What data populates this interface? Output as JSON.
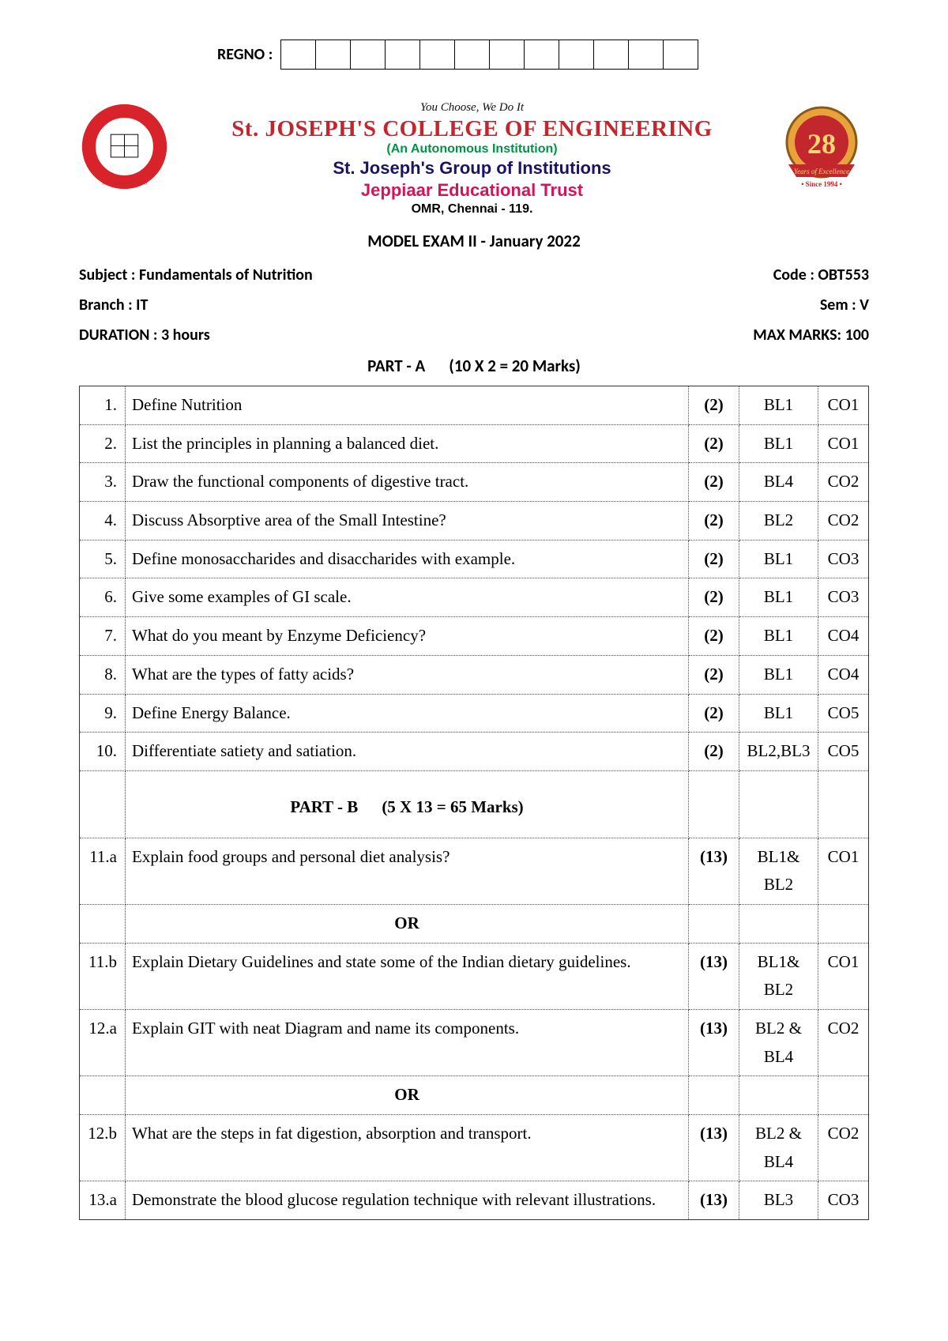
{
  "regno_label": "REGNO :",
  "regno_box_count": 12,
  "header": {
    "tagline": "You Choose, We Do It",
    "college": "St. JOSEPH'S COLLEGE OF ENGINEERING",
    "autonomous": "(An Autonomous Institution)",
    "group": "St. Joseph's Group of Institutions",
    "trust": "Jeppiaar Educational Trust",
    "address": "OMR, Chennai - 119.",
    "badge_number": "28",
    "badge_since": "• Since 1994 •",
    "badge_ribbon": "Years of Excellence"
  },
  "exam_title": "MODEL EXAM II - January 2022",
  "meta": {
    "subject_label": "Subject : Fundamentals of Nutrition",
    "code_label": "Code : OBT553",
    "branch_label": "Branch : IT",
    "sem_label": "Sem : V",
    "duration_label": "DURATION : 3 hours",
    "max_marks_label": "MAX MARKS: 100"
  },
  "part_a_header_left": "PART - A",
  "part_a_header_right": "(10 X 2 = 20 Marks)",
  "part_b_header_left": "PART - B",
  "part_b_header_right": "(5 X 13 = 65 Marks)",
  "or_label": "OR",
  "part_a": [
    {
      "num": "1.",
      "q": "Define Nutrition",
      "marks": "(2)",
      "bl": "BL1",
      "co": "CO1"
    },
    {
      "num": "2.",
      "q": "List the principles in planning a balanced diet.",
      "marks": "(2)",
      "bl": "BL1",
      "co": "CO1"
    },
    {
      "num": "3.",
      "q": "Draw the functional components of digestive tract.",
      "marks": "(2)",
      "bl": "BL4",
      "co": "CO2"
    },
    {
      "num": "4.",
      "q": "Discuss Absorptive area of the Small Intestine?",
      "marks": "(2)",
      "bl": "BL2",
      "co": "CO2"
    },
    {
      "num": "5.",
      "q": "Define monosaccharides and disaccharides with example.",
      "marks": "(2)",
      "bl": "BL1",
      "co": "CO3"
    },
    {
      "num": "6.",
      "q": "Give some examples of GI scale.",
      "marks": "(2)",
      "bl": "BL1",
      "co": "CO3"
    },
    {
      "num": "7.",
      "q": "What do you meant by Enzyme Deficiency?",
      "marks": "(2)",
      "bl": "BL1",
      "co": "CO4"
    },
    {
      "num": "8.",
      "q": "What are the types of fatty acids?",
      "marks": "(2)",
      "bl": "BL1",
      "co": "CO4"
    },
    {
      "num": "9.",
      "q": "Define Energy Balance.",
      "marks": "(2)",
      "bl": "BL1",
      "co": "CO5"
    },
    {
      "num": "10.",
      "q": "Differentiate satiety and satiation.",
      "marks": "(2)",
      "bl": "BL2,BL3",
      "co": "CO5"
    }
  ],
  "part_b": [
    {
      "num": "11.a",
      "q": "Explain food groups and personal diet analysis?",
      "marks": "(13)",
      "bl": "BL1& BL2",
      "co": "CO1"
    },
    {
      "type": "or"
    },
    {
      "num": "11.b",
      "q": "Explain Dietary Guidelines and state some of the Indian dietary guidelines.",
      "marks": "(13)",
      "bl": "BL1& BL2",
      "co": "CO1"
    },
    {
      "num": "12.a",
      "q": "Explain GIT with neat Diagram and name its components.",
      "marks": "(13)",
      "bl": "BL2 & BL4",
      "co": "CO2"
    },
    {
      "type": "or"
    },
    {
      "num": "12.b",
      "q": "What are the steps in fat digestion, absorption and transport.",
      "marks": "(13)",
      "bl": "BL2 & BL4",
      "co": "CO2"
    },
    {
      "num": "13.a",
      "q": "Demonstrate the blood glucose regulation technique with relevant illustrations.",
      "marks": "(13)",
      "bl": "BL3",
      "co": "CO3"
    }
  ],
  "colors": {
    "red": "#c1272d",
    "green": "#009245",
    "navy": "#1b1464",
    "magenta": "#d4145a",
    "gold": "#e8a33d"
  }
}
